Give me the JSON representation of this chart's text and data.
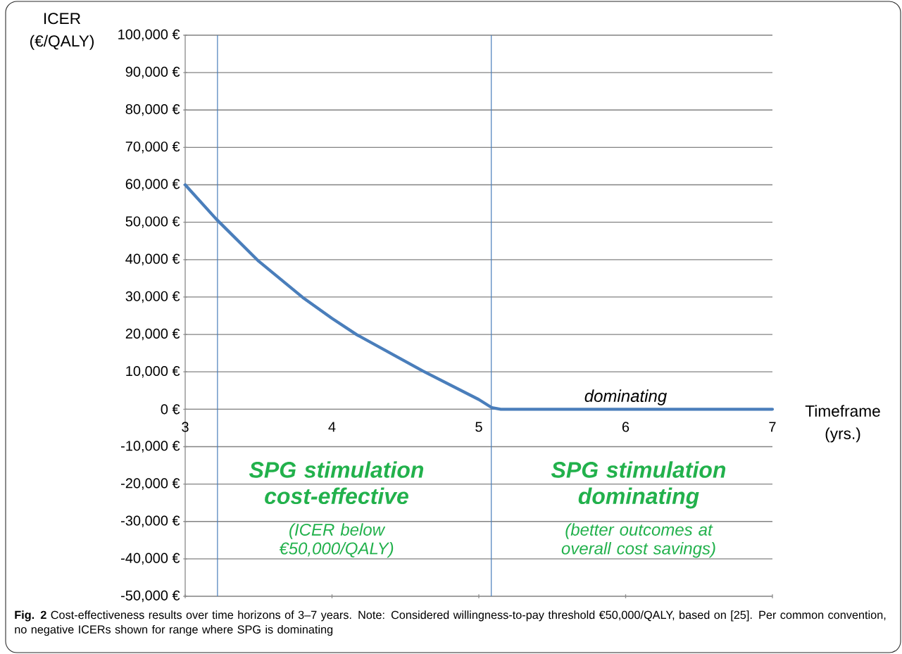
{
  "chart_data": {
    "type": "line",
    "xlabel": "Timeframe (yrs.)",
    "ylabel": "ICER (€/QALY)",
    "x": [
      3,
      3.21,
      3.5,
      3.8,
      4,
      4.17,
      4.62,
      5,
      5.09,
      5.15,
      6,
      7
    ],
    "series": [
      {
        "color": "#4a7ebb",
        "values": [
          60000,
          50900,
          39600,
          29900,
          24300,
          19900,
          10200,
          2600,
          400,
          0,
          0,
          0
        ]
      }
    ],
    "marker": "none",
    "line_style": "solid",
    "xlim": [
      3,
      7
    ],
    "xticks": [
      3,
      4,
      5,
      6,
      7
    ],
    "ylim": [
      -50000,
      100000
    ],
    "yticks": [
      {
        "value": -50000,
        "label": "-50,000 €"
      },
      {
        "value": -40000,
        "label": "-40,000 €"
      },
      {
        "value": -30000,
        "label": "-30,000 €"
      },
      {
        "value": -20000,
        "label": "-20,000 €"
      },
      {
        "value": -10000,
        "label": "-10,000 €"
      },
      {
        "value": 0,
        "label": "0 €"
      },
      {
        "value": 10000,
        "label": "10,000 €"
      },
      {
        "value": 20000,
        "label": "20,000 €"
      },
      {
        "value": 30000,
        "label": "30,000 €"
      },
      {
        "value": 40000,
        "label": "40,000 €"
      },
      {
        "value": 50000,
        "label": "50,000 €"
      },
      {
        "value": 60000,
        "label": "60,000 €"
      },
      {
        "value": 70000,
        "label": "70,000 €"
      },
      {
        "value": 80000,
        "label": "80,000 €"
      },
      {
        "value": 90000,
        "label": "90,000 €"
      },
      {
        "value": 100000,
        "label": "100,000 €"
      }
    ],
    "grid": "y",
    "ref_lines": [
      {
        "axis": "x",
        "value": 3.22,
        "color": "#4a7ebb"
      },
      {
        "axis": "x",
        "value": 5.085,
        "color": "#4a7ebb"
      }
    ],
    "annotations": [
      {
        "text": "dominating",
        "x": 6,
        "y": 0
      },
      "SPG stimulation cost-effective",
      "(ICER below €50,000/QALY)",
      "SPG stimulation dominating",
      "(better outcomes at overall cost savings)",
      "**Fig. 2** Cost-effectiveness results over time horizons of 3–7 years. Note: Considered willingness-to-pay threshold €50,000/QALY, based on [25]. Per common convention, no negative ICERs shown for range where SPG is dominating"
    ]
  }
}
